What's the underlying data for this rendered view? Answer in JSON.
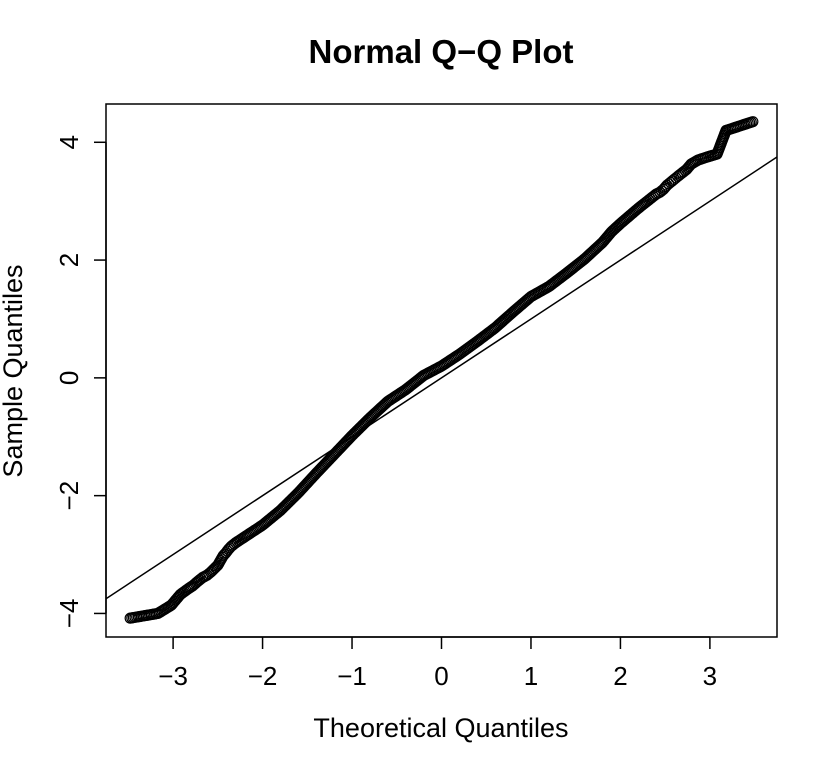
{
  "chart_data": {
    "type": "scatter",
    "title": "Normal Q−Q Plot",
    "xlabel": "Theoretical Quantiles",
    "ylabel": "Sample Quantiles",
    "xlim": [
      -3.75,
      3.75
    ],
    "ylim": [
      -4.4,
      4.65
    ],
    "xticks": [
      -3,
      -2,
      -1,
      0,
      1,
      2,
      3
    ],
    "xtick_labels": [
      "−3",
      "−2",
      "−1",
      "0",
      "1",
      "2",
      "3"
    ],
    "yticks": [
      -4,
      -2,
      0,
      2,
      4
    ],
    "ytick_labels": [
      "−4",
      "−2",
      "0",
      "2",
      "4"
    ],
    "grid": false,
    "legend": "none",
    "points": {
      "x": [
        -3.48,
        -3.17,
        -3.02,
        -2.92,
        -2.84,
        -2.78,
        -2.72,
        -2.67,
        -2.62,
        -2.58,
        -2.54,
        -2.5,
        -2.47,
        -2.44,
        -2.41,
        -2.38,
        -2.35,
        -2.3,
        -2.2,
        -2.0,
        -1.8,
        -1.6,
        -1.4,
        -1.2,
        -1.0,
        -0.8,
        -0.6,
        -0.4,
        -0.2,
        0.0,
        0.2,
        0.4,
        0.6,
        0.8,
        1.0,
        1.2,
        1.4,
        1.6,
        1.8,
        1.9,
        2.0,
        2.1,
        2.2,
        2.3,
        2.35,
        2.4,
        2.44,
        2.48,
        2.52,
        2.56,
        2.6,
        2.64,
        2.69,
        2.74,
        2.79,
        2.87,
        2.97,
        3.08,
        3.18,
        3.48
      ],
      "y": [
        -4.08,
        -4.0,
        -3.86,
        -3.68,
        -3.59,
        -3.53,
        -3.45,
        -3.39,
        -3.35,
        -3.3,
        -3.24,
        -3.18,
        -3.1,
        -3.02,
        -2.97,
        -2.91,
        -2.86,
        -2.8,
        -2.7,
        -2.5,
        -2.25,
        -1.95,
        -1.62,
        -1.3,
        -0.98,
        -0.68,
        -0.4,
        -0.2,
        0.04,
        0.2,
        0.4,
        0.62,
        0.85,
        1.12,
        1.38,
        1.55,
        1.78,
        2.02,
        2.3,
        2.48,
        2.62,
        2.75,
        2.88,
        3.0,
        3.06,
        3.12,
        3.15,
        3.2,
        3.27,
        3.32,
        3.37,
        3.42,
        3.48,
        3.54,
        3.63,
        3.7,
        3.75,
        3.8,
        4.2,
        4.35
      ]
    },
    "reference_line": {
      "x": [
        -3.75,
        3.75
      ],
      "y": [
        -3.75,
        3.75
      ]
    }
  }
}
